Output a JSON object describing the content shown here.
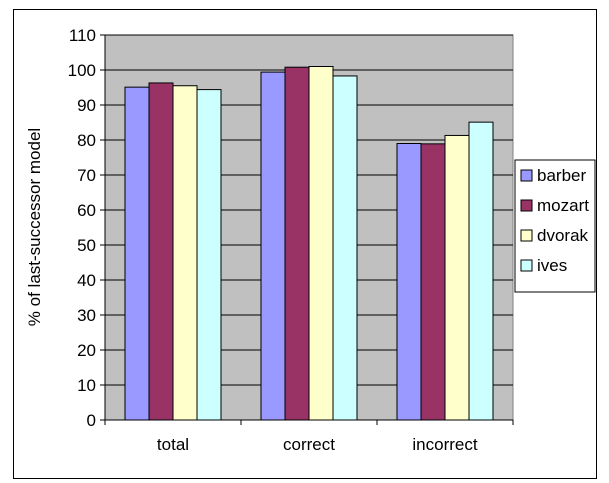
{
  "chart_data": {
    "type": "bar",
    "categories": [
      "total",
      "correct",
      "incorrect"
    ],
    "series": [
      {
        "name": "barber",
        "color": "#9999ff",
        "values": [
          95.1,
          99.4,
          79.0
        ]
      },
      {
        "name": "mozart",
        "color": "#993366",
        "values": [
          96.3,
          100.8,
          78.9
        ]
      },
      {
        "name": "dvorak",
        "color": "#ffffcc",
        "values": [
          95.5,
          101.0,
          81.3
        ]
      },
      {
        "name": "ives",
        "color": "#ccffff",
        "values": [
          94.4,
          98.3,
          85.1
        ]
      }
    ],
    "ylabel": "% of last-successor model",
    "ylim": [
      0,
      110
    ],
    "yticks": [
      0,
      10,
      20,
      30,
      40,
      50,
      60,
      70,
      80,
      90,
      100,
      110
    ],
    "grid": true,
    "plot_background": "#c0c0c0",
    "legend_position": "right"
  }
}
